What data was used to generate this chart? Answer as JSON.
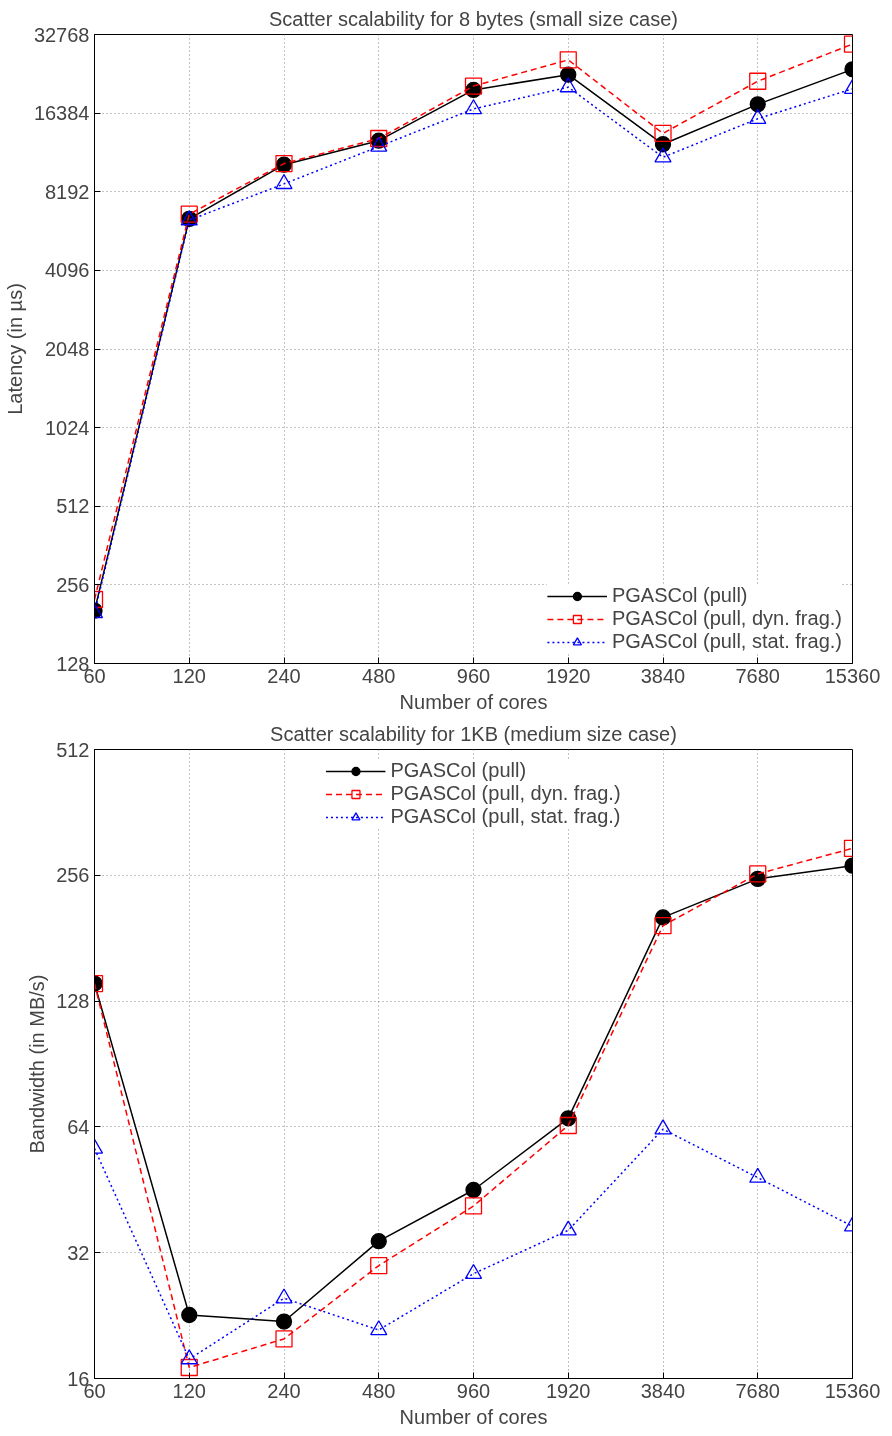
{
  "chart_data": [
    {
      "type": "line",
      "title": "Scatter scalability for 8 bytes (small size case)",
      "xlabel": "Number of cores",
      "ylabel": "Latency (in µs)",
      "categories": [
        "60",
        "120",
        "240",
        "480",
        "960",
        "1920",
        "3840",
        "7680",
        "15360"
      ],
      "log": "y",
      "ylim": [
        128,
        32768
      ],
      "yticks": [
        128,
        256,
        512,
        1024,
        2048,
        4096,
        8192,
        16384,
        32768
      ],
      "grid": true,
      "legend": "bottom right",
      "series": [
        {
          "name": "PGASCol (pull)",
          "color": "#000000",
          "marker": "circle",
          "line_style": "solid",
          "values": [
            204,
            6450,
            10400,
            12850,
            20100,
            23000,
            12450,
            17700,
            24100
          ]
        },
        {
          "name": "PGASCol (pull, dyn. frag.)",
          "color": "#ff0000",
          "marker": "square",
          "line_style": "dashed",
          "values": [
            225,
            6720,
            10500,
            13100,
            20800,
            26200,
            13700,
            21700,
            30100
          ]
        },
        {
          "name": "PGASCol (pull, stat. frag.)",
          "color": "#0000ff",
          "marker": "triangle",
          "line_style": "dotted",
          "values": [
            200,
            6380,
            8780,
            12200,
            17000,
            20600,
            11100,
            15600,
            20300
          ]
        }
      ]
    },
    {
      "type": "line",
      "title": "Scatter scalability for 1KB (medium size case)",
      "xlabel": "Number of cores",
      "ylabel": "Bandwidth (in MB/s)",
      "categories": [
        "60",
        "120",
        "240",
        "480",
        "960",
        "1920",
        "3840",
        "7680",
        "15360"
      ],
      "log": "y",
      "ylim": [
        16,
        512
      ],
      "yticks": [
        16,
        32,
        64,
        128,
        256,
        512
      ],
      "grid": true,
      "legend": "top",
      "series": [
        {
          "name": "PGASCol (pull)",
          "color": "#000000",
          "marker": "circle",
          "line_style": "solid",
          "values": [
            141,
            22.7,
            21.9,
            34.1,
            45.2,
            67.1,
            203,
            251,
            270
          ]
        },
        {
          "name": "PGASCol (pull, dyn. frag.)",
          "color": "#ff0000",
          "marker": "square",
          "line_style": "dashed",
          "values": [
            141,
            17.0,
            19.9,
            29.8,
            41.4,
            64.5,
            194,
            258,
            297
          ]
        },
        {
          "name": "PGASCol (pull, stat. frag.)",
          "color": "#0000ff",
          "marker": "triangle",
          "line_style": "dotted",
          "values": [
            56.8,
            17.8,
            24.9,
            20.9,
            28.5,
            36.2,
            63.2,
            48.4,
            37.0
          ]
        }
      ]
    }
  ]
}
